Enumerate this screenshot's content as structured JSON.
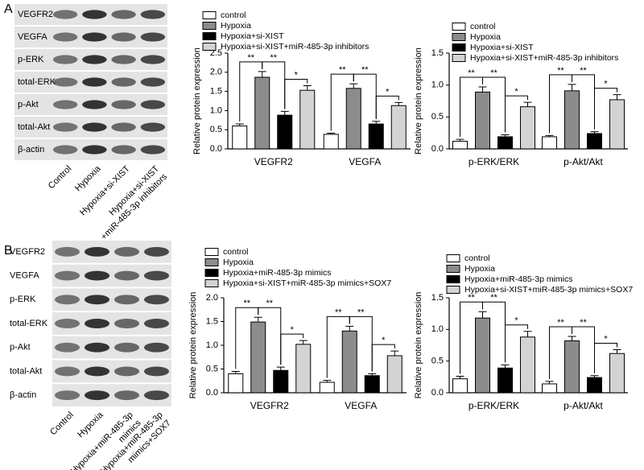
{
  "panels": [
    {
      "letter": "A",
      "blot": {
        "rows": [
          "VEGFR2",
          "VEGFA",
          "p-ERK",
          "total-ERK",
          "p-Akt",
          "total-Akt",
          "β-actin"
        ],
        "lanes": [
          [
            "Control"
          ],
          [
            "Hypoxia"
          ],
          [
            "Hypoxia+si-XIST"
          ],
          [
            "Hypoxia+si-XIST",
            "+miR-485-3p inhibitors"
          ]
        ]
      }
    },
    {
      "letter": "B",
      "blot": {
        "rows": [
          "VEGFR2",
          "VEGFA",
          "p-ERK",
          "total-ERK",
          "p-Akt",
          "total-Akt",
          "β-actin"
        ],
        "lanes": [
          [
            "Control"
          ],
          [
            "Hypoxia"
          ],
          [
            "Hypoxia+miR-485-3p",
            "mimics"
          ],
          [
            "Hypoxia+miR-485-3p",
            "mimics+SOX7"
          ]
        ]
      }
    }
  ],
  "chart_data": [
    {
      "type": "bar",
      "y_label": "Relative protein expression",
      "categories": [
        "VEGFR2",
        "VEGFA"
      ],
      "ylim": [
        0,
        2.5
      ],
      "yticks": [
        {
          "value": 0,
          "label": "0.0"
        },
        0.5,
        {
          "value": 1,
          "label": "1.0"
        },
        1.5,
        {
          "value": 2,
          "label": "2.0"
        },
        2.5
      ],
      "series": [
        {
          "name": "control",
          "color": "#ffffff",
          "values": [
            0.6,
            0.38
          ],
          "errors": [
            0.05,
            0.03
          ]
        },
        {
          "name": "Hypoxia",
          "color": "#8c8c8c",
          "values": [
            1.87,
            1.58
          ],
          "errors": [
            0.15,
            0.12
          ]
        },
        {
          "name": "Hypoxia+si-XIST",
          "color": "#000000",
          "values": [
            0.88,
            0.65
          ],
          "errors": [
            0.1,
            0.07
          ]
        },
        {
          "name": "Hypoxia+si-XIST+miR-485-3p inhibitors",
          "color": "#d3d3d3",
          "values": [
            1.53,
            1.13
          ],
          "errors": [
            0.12,
            0.08
          ]
        }
      ],
      "significance": [
        [
          "**",
          "**",
          "*"
        ],
        [
          "**",
          "**",
          "*"
        ]
      ]
    },
    {
      "type": "bar",
      "y_label": "Relative protein expression",
      "categories": [
        "p-ERK/ERK",
        "p-Akt/Akt"
      ],
      "ylim": [
        0,
        1.5
      ],
      "yticks": [
        {
          "value": 0,
          "label": "0.0"
        },
        0.5,
        {
          "value": 1,
          "label": "1.0"
        },
        1.5
      ],
      "series": [
        {
          "name": "control",
          "color": "#ffffff",
          "values": [
            0.12,
            0.19
          ],
          "errors": [
            0.03,
            0.02
          ]
        },
        {
          "name": "Hypoxia",
          "color": "#8c8c8c",
          "values": [
            0.89,
            0.91
          ],
          "errors": [
            0.08,
            0.1
          ]
        },
        {
          "name": "Hypoxia+si-XIST",
          "color": "#000000",
          "values": [
            0.19,
            0.24
          ],
          "errors": [
            0.03,
            0.03
          ]
        },
        {
          "name": "Hypoxia+si-XIST+miR-485-3p inhibitors",
          "color": "#d3d3d3",
          "values": [
            0.66,
            0.77
          ],
          "errors": [
            0.07,
            0.08
          ]
        }
      ],
      "significance": [
        [
          "**",
          "**",
          "*"
        ],
        [
          "**",
          "**",
          "*"
        ]
      ]
    },
    {
      "type": "bar",
      "y_label": "Relative protein expression",
      "categories": [
        "VEGFR2",
        "VEGFA"
      ],
      "ylim": [
        0,
        2
      ],
      "yticks": [
        {
          "value": 0,
          "label": "0.0"
        },
        0.5,
        {
          "value": 1,
          "label": "1.0"
        },
        1.5,
        {
          "value": 2,
          "label": "2.0"
        }
      ],
      "series": [
        {
          "name": "control",
          "color": "#ffffff",
          "values": [
            0.4,
            0.22
          ],
          "errors": [
            0.05,
            0.04
          ]
        },
        {
          "name": "Hypoxia",
          "color": "#8c8c8c",
          "values": [
            1.49,
            1.3
          ],
          "errors": [
            0.1,
            0.1
          ]
        },
        {
          "name": "Hypoxia+miR-485-3p mimics",
          "color": "#000000",
          "values": [
            0.47,
            0.36
          ],
          "errors": [
            0.07,
            0.04
          ]
        },
        {
          "name": "Hypoxia+si-XIST+miR-485-3p mimics+SOX7",
          "color": "#d3d3d3",
          "values": [
            1.02,
            0.78
          ],
          "errors": [
            0.08,
            0.1
          ]
        }
      ],
      "significance": [
        [
          "**",
          "**",
          "*"
        ],
        [
          "**",
          "**",
          "*"
        ]
      ]
    },
    {
      "type": "bar",
      "y_label": "Relative protein expression",
      "categories": [
        "p-ERK/ERK",
        "p-Akt/Akt"
      ],
      "ylim": [
        0,
        1.5
      ],
      "yticks": [
        {
          "value": 0,
          "label": "0.0"
        },
        0.5,
        {
          "value": 1,
          "label": "1.0"
        },
        1.5
      ],
      "series": [
        {
          "name": "control",
          "color": "#ffffff",
          "values": [
            0.22,
            0.14
          ],
          "errors": [
            0.04,
            0.04
          ]
        },
        {
          "name": "Hypoxia",
          "color": "#8c8c8c",
          "values": [
            1.18,
            0.82
          ],
          "errors": [
            0.1,
            0.07
          ]
        },
        {
          "name": "Hypoxia+miR-485-3p mimics",
          "color": "#000000",
          "values": [
            0.39,
            0.24
          ],
          "errors": [
            0.05,
            0.03
          ]
        },
        {
          "name": "Hypoxia+si-XIST+miR-485-3p mimics+SOX7",
          "color": "#d3d3d3",
          "values": [
            0.88,
            0.62
          ],
          "errors": [
            0.09,
            0.06
          ]
        }
      ],
      "significance": [
        [
          "**",
          "**",
          "*"
        ],
        [
          "**",
          "**",
          "*"
        ]
      ]
    }
  ]
}
